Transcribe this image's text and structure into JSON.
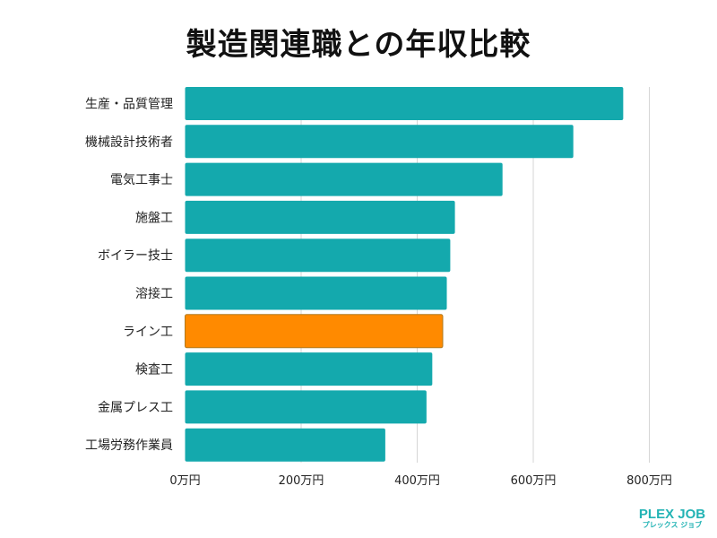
{
  "chart_data": {
    "type": "bar",
    "orientation": "horizontal",
    "title": "製造関連職との年収比較",
    "categories": [
      "生産・品質管理",
      "機械設計技術者",
      "電気工事士",
      "施盤工",
      "ボイラー技士",
      "溶接工",
      "ライン工",
      "検査工",
      "金属プレス工",
      "工場労務作業員"
    ],
    "values": [
      755,
      669,
      547,
      465,
      457,
      451,
      444,
      426,
      416,
      345
    ],
    "unit": "万円",
    "xlim": [
      0,
      820
    ],
    "xticks": [
      0,
      200,
      400,
      600,
      800
    ],
    "xtick_labels": [
      "0万円",
      "200万円",
      "400万円",
      "600万円",
      "800万円"
    ],
    "grid": "vertical",
    "highlight_category": "ライン工",
    "colors": {
      "default": "#14a9ad",
      "highlight": "#ff8a00",
      "grid": "#d6d6d6"
    }
  },
  "logo": {
    "line1": "PLEX JOB",
    "line2": "プレックス ジョブ",
    "color": "#22b3b4"
  }
}
